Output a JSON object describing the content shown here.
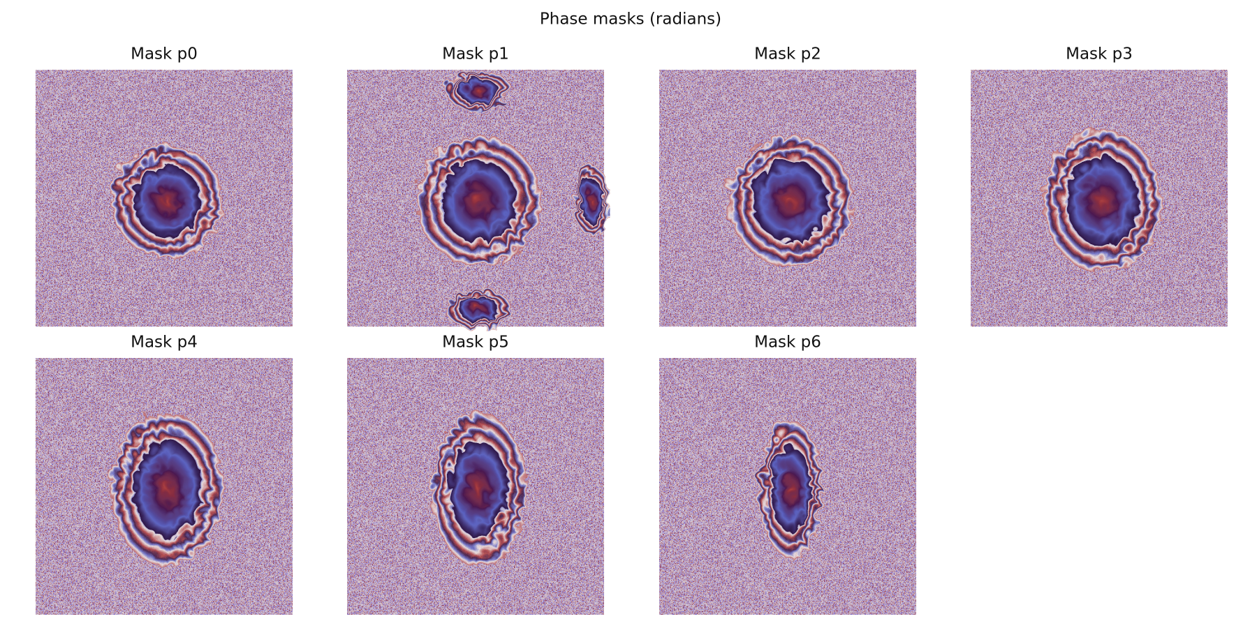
{
  "title": "Phase masks (radians)",
  "panels": [
    {
      "title": "Mask p0"
    },
    {
      "title": "Mask p1"
    },
    {
      "title": "Mask p2"
    },
    {
      "title": "Mask p3"
    },
    {
      "title": "Mask p4"
    },
    {
      "title": "Mask p5"
    },
    {
      "title": "Mask p6"
    }
  ]
}
